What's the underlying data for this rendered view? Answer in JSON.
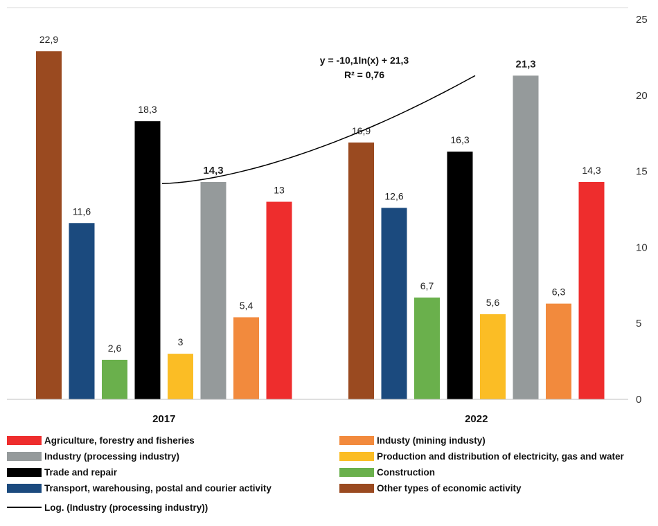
{
  "chart_data": {
    "type": "bar",
    "categories": [
      "2017",
      "2022"
    ],
    "ylim": [
      0,
      25
    ],
    "yticks": [
      "0",
      "5",
      "10",
      "15",
      "20",
      "25"
    ],
    "y_axis_side": "right",
    "series": [
      {
        "name": "Other types of economic activity",
        "color": "#9a4a20",
        "values": [
          22.9,
          16.9
        ],
        "labels": [
          "22,9",
          "16,9"
        ]
      },
      {
        "name": "Transport, warehousing, postal and courier activity",
        "color": "#1b4a7e",
        "values": [
          11.6,
          12.6
        ],
        "labels": [
          "11,6",
          "12,6"
        ]
      },
      {
        "name": "Construction",
        "color": "#6ab04c",
        "values": [
          2.6,
          6.7
        ],
        "labels": [
          "2,6",
          "6,7"
        ]
      },
      {
        "name": "Trade and repair",
        "color": "#000000",
        "values": [
          18.3,
          16.3
        ],
        "labels": [
          "18,3",
          "16,3"
        ]
      },
      {
        "name": "Production and distribution of electricity, gas and water",
        "color": "#fbbd25",
        "values": [
          3,
          5.6
        ],
        "labels": [
          "3",
          "5,6"
        ]
      },
      {
        "name": "Industry (processing industry)",
        "color": "#959a9b",
        "values": [
          14.3,
          21.3
        ],
        "labels": [
          "14,3",
          "21,3"
        ],
        "bold_labels": true
      },
      {
        "name": "Industy (mining industy)",
        "color": "#f28a3d",
        "values": [
          5.4,
          6.3
        ],
        "labels": [
          "5,4",
          "6,3"
        ]
      },
      {
        "name": "Agriculture, forestry and fisheries",
        "color": "#ee2d2d",
        "values": [
          13,
          14.3
        ],
        "labels": [
          "13",
          "14,3"
        ]
      }
    ],
    "trendline": {
      "series": "Industry (processing industry)",
      "type": "logarithmic",
      "equation": "y = -10,1ln(x) + 21,3",
      "r2": "R² = 0,76",
      "legend_label": "Log. (Industry (processing industry))"
    },
    "legend": {
      "position": "bottom",
      "entries": [
        {
          "label": "Agriculture, forestry and fisheries",
          "color": "#ee2d2d",
          "kind": "box"
        },
        {
          "label": "Industy (mining industy)",
          "color": "#f28a3d",
          "kind": "box"
        },
        {
          "label": "Industry (processing industry)",
          "color": "#959a9b",
          "kind": "box"
        },
        {
          "label": "Production and distribution of electricity, gas and water",
          "color": "#fbbd25",
          "kind": "box"
        },
        {
          "label": "Trade and repair",
          "color": "#000000",
          "kind": "box"
        },
        {
          "label": "Construction",
          "color": "#6ab04c",
          "kind": "box"
        },
        {
          "label": "Transport, warehousing, postal and courier activity",
          "color": "#1b4a7e",
          "kind": "box"
        },
        {
          "label": "Other types of economic activity",
          "color": "#9a4a20",
          "kind": "box"
        },
        {
          "label": "Log. (Industry (processing industry))",
          "color": "#000000",
          "kind": "line"
        }
      ]
    }
  }
}
